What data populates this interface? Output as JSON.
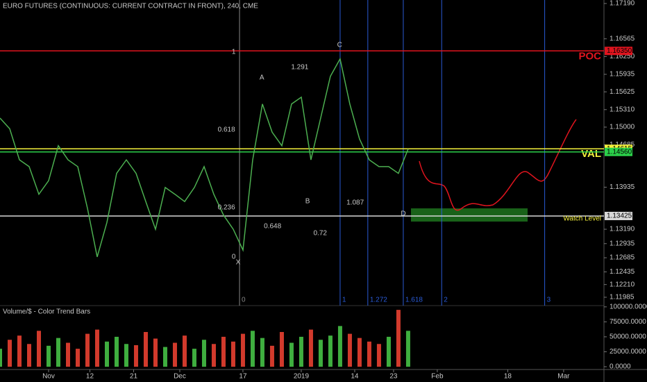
{
  "chart_data": {
    "type": "line",
    "title": "EURO FUTURES (CONTINUOUS: CURRENT CONTRACT IN FRONT), 240, CME",
    "color": "#4caf50",
    "x": [
      0,
      2,
      4,
      6,
      8,
      10,
      12,
      14,
      16,
      18,
      20,
      22,
      24,
      26,
      28,
      30,
      32,
      34,
      36,
      38,
      40,
      42,
      44,
      46,
      48,
      50,
      52,
      54,
      56,
      58,
      60,
      62,
      64,
      66,
      68,
      70,
      72,
      74,
      76,
      78,
      80,
      82,
      84
    ],
    "values": [
      1.1516,
      1.1497,
      1.1442,
      1.143,
      1.1381,
      1.1405,
      1.1467,
      1.1442,
      1.143,
      1.1356,
      1.127,
      1.1331,
      1.1418,
      1.1442,
      1.1418,
      1.1368,
      1.1319,
      1.1393,
      1.1381,
      1.1368,
      1.1393,
      1.143,
      1.1381,
      1.1344,
      1.1319,
      1.1282,
      1.1442,
      1.1541,
      1.1491,
      1.1467,
      1.1541,
      1.1553,
      1.1442,
      1.1516,
      1.159,
      1.1621,
      1.1541,
      1.1479,
      1.1442,
      1.143,
      1.143,
      1.1418,
      1.1461
    ],
    "xlim": [
      0,
      124.3
    ],
    "xticks": [
      {
        "value": 10,
        "label": "Nov"
      },
      {
        "value": 18.5,
        "label": "12"
      },
      {
        "value": 27.5,
        "label": "21"
      },
      {
        "value": 37,
        "label": "Dec"
      },
      {
        "value": 50,
        "label": "17"
      },
      {
        "value": 62,
        "label": "2019"
      },
      {
        "value": 73,
        "label": "14"
      },
      {
        "value": 81,
        "label": "23"
      },
      {
        "value": 90,
        "label": "Feb"
      },
      {
        "value": 104.5,
        "label": "18"
      },
      {
        "value": 116,
        "label": "Mar"
      }
    ],
    "ylim": [
      1.11837,
      1.17252
    ],
    "yticks": [
      {
        "value": 1.1719,
        "label": "1.17190"
      },
      1.16565,
      {
        "value": 1.1625,
        "label": "1.16250"
      },
      1.15935,
      1.15625,
      {
        "value": 1.1531,
        "label": "1.15310"
      },
      {
        "value": 1.15,
        "label": "1.15000"
      },
      1.14685,
      1.13935,
      {
        "value": 1.1319,
        "label": "1.13190"
      },
      1.12935,
      1.12685,
      1.12435,
      {
        "value": 1.1221,
        "label": "1.12210"
      },
      1.11985
    ],
    "levels": [
      {
        "name": "POC",
        "value": 1.1635,
        "value_label": "1.16350",
        "color": "#e0141e"
      },
      {
        "name": "VAL",
        "value": 1.14615,
        "value_label": "1.14615",
        "color": "#f5f03c"
      },
      {
        "value": 1.1456,
        "value_label": "1.14560",
        "color": "#2bd14a"
      },
      {
        "name": "Watch Level",
        "value": 1.13425,
        "value_label": "1.13425",
        "color": "#d8d8d8"
      }
    ],
    "fib_time": [
      {
        "label": "0",
        "x": 49.3
      },
      {
        "label": "1",
        "x": 70
      },
      {
        "label": "1.272",
        "x": 75.7
      },
      {
        "label": "1.618",
        "x": 83
      },
      {
        "label": "2",
        "x": 90.9
      },
      {
        "label": "3",
        "x": 112.1
      }
    ],
    "annotations": [
      {
        "text": "X",
        "x": 49,
        "y": 1.126
      },
      {
        "text": "A",
        "x": 53.9,
        "y": 1.15873
      },
      {
        "text": "B",
        "x": 63.3,
        "y": 1.13683
      },
      {
        "text": "C",
        "x": 69.9,
        "y": 1.16452
      },
      {
        "text": "D",
        "x": 83,
        "y": 1.13462
      },
      {
        "text": "1.291",
        "x": 61.7,
        "y": 1.16058
      },
      {
        "text": "0.618",
        "x": 46.6,
        "y": 1.14951
      },
      {
        "text": "0.236",
        "x": 46.6,
        "y": 1.13572
      },
      {
        "text": "0.648",
        "x": 56.1,
        "y": 1.1324
      },
      {
        "text": "0.72",
        "x": 65.9,
        "y": 1.13117
      },
      {
        "text": "1.087",
        "x": 73.1,
        "y": 1.13658
      },
      {
        "text": "1",
        "x": 48.1,
        "y": 1.16329
      },
      {
        "text": "0",
        "x": 48.1,
        "y": 1.12699
      }
    ],
    "volume": {
      "title": "Volume/$ - Color Trend Bars",
      "up_color": "#3fae3f",
      "down_color": "#d23a2c",
      "values": [
        30000,
        45000,
        52000,
        38000,
        60000,
        35000,
        48000,
        40000,
        30000,
        55000,
        62000,
        42000,
        50000,
        38000,
        36000,
        58000,
        47000,
        33000,
        40000,
        52000,
        30000,
        45000,
        38000,
        50000,
        42000,
        55000,
        60000,
        48000,
        35000,
        58000,
        40000,
        50000,
        62000,
        45000,
        52000,
        68000,
        55000,
        48000,
        42000,
        38000,
        50000,
        95000,
        60000
      ],
      "ylim": [
        0,
        105000
      ],
      "yticks": [
        {
          "value": 100000,
          "label": "100000.0000"
        },
        {
          "value": 75000,
          "label": "75000.0000"
        },
        {
          "value": 50000,
          "label": "50000.0000"
        },
        {
          "value": 25000,
          "label": "25000.0000"
        },
        {
          "value": 0,
          "label": "0.0000"
        }
      ]
    }
  }
}
